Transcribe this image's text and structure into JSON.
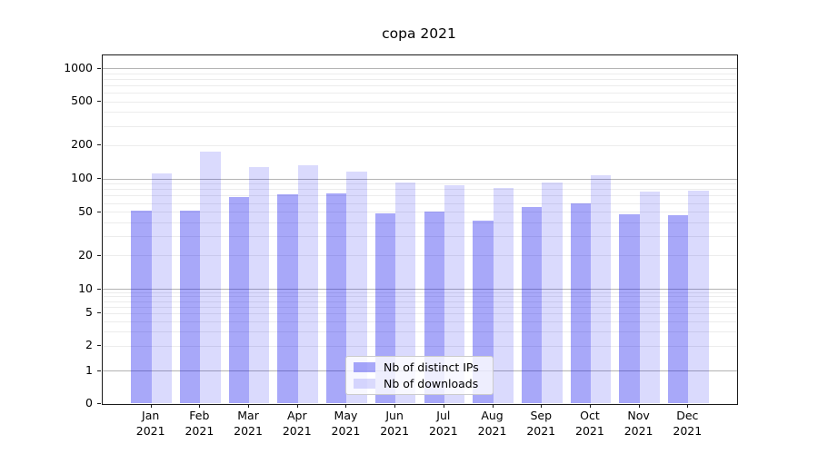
{
  "figure": {
    "title": "copa 2021",
    "background_color": "#ffffff"
  },
  "chart_data": {
    "type": "bar",
    "title": "copa 2021",
    "xlabel": "",
    "ylabel": "",
    "yscale": "symlog",
    "ylim": [
      0,
      1270
    ],
    "yticks": [
      0,
      1,
      2,
      5,
      10,
      20,
      50,
      100,
      200,
      500,
      1000
    ],
    "grid": true,
    "legend_position": "lower center",
    "categories": [
      "Jan 2021",
      "Feb 2021",
      "Mar 2021",
      "Apr 2021",
      "May 2021",
      "Jun 2021",
      "Jul 2021",
      "Aug 2021",
      "Sep 2021",
      "Oct 2021",
      "Nov 2021",
      "Dec 2021"
    ],
    "series": [
      {
        "name": "Nb of distinct IPs",
        "color": "#a8a8f6",
        "fill_rgba": "rgba(0,0,238,0.34)",
        "values": [
          52,
          52,
          69,
          72,
          74,
          49,
          51,
          42,
          56,
          60,
          48,
          47
        ]
      },
      {
        "name": "Nb of downloads",
        "color": "#dadafb",
        "fill_rgba": "rgba(0,0,238,0.145)",
        "values": [
          112,
          178,
          129,
          133,
          116,
          93,
          87,
          83,
          92,
          107,
          77,
          78
        ]
      }
    ]
  }
}
